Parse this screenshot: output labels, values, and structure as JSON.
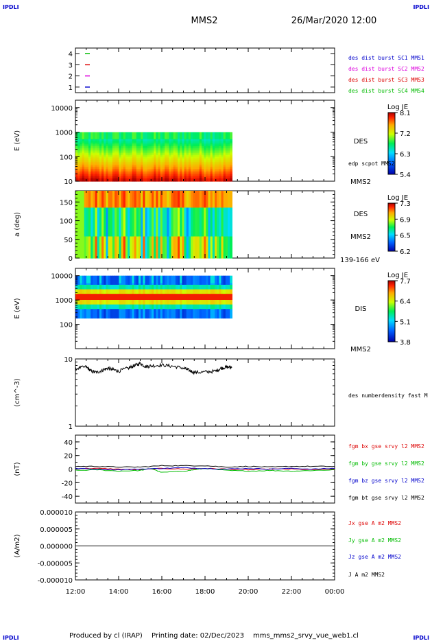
{
  "header": {
    "corner_logo": "IPDLI",
    "spacecraft": "MMS2",
    "datetime": "26/Mar/2020 12:00"
  },
  "footer": {
    "produced_by": "Produced by cl (IRAP)",
    "printing_date": "Printing date: 02/Dec/2023",
    "script_name": "mms_mms2_srvy_vue_web1.cl"
  },
  "colors": {
    "blue": "#0000cc",
    "red": "#dd0000",
    "green": "#00bb00",
    "magenta": "#dd00dd",
    "black": "#000000"
  },
  "chart_data": [
    {
      "type": "scatter",
      "panel": "burst-availability",
      "yticks": [
        "1",
        "2",
        "3",
        "4"
      ],
      "ylim": [
        0.5,
        4.5
      ],
      "legend": [
        {
          "name": "des dist burst SC1 MMS1",
          "color": "#0000cc",
          "level": 1
        },
        {
          "name": "des dist burst SC2 MMS2",
          "color": "#dd00dd",
          "level": 2
        },
        {
          "name": "des dist burst SC3 MMS3",
          "color": "#dd0000",
          "level": 3
        },
        {
          "name": "des dist burst SC4 MMS4",
          "color": "#00bb00",
          "level": 4
        }
      ]
    },
    {
      "type": "heatmap",
      "panel": "des-energy-spectrogram",
      "ylabel": "E (eV)",
      "yscale": "log",
      "ylim": [
        10,
        20000
      ],
      "yticks": [
        "10",
        "100",
        "1000",
        "10000"
      ],
      "colorbar": {
        "title": "Log JE",
        "ticks": [
          "8.1",
          "7.2",
          "6.3",
          "5.4"
        ],
        "range": [
          5.4,
          8.1
        ]
      },
      "labels": [
        "DES",
        "edp scpot MMS2",
        "MMS2"
      ],
      "data_end_hours": 7.25
    },
    {
      "type": "heatmap",
      "panel": "des-pitch-angle",
      "ylabel": "a (deg)",
      "ylim": [
        0,
        180
      ],
      "yticks": [
        "0",
        "50",
        "100",
        "150"
      ],
      "colorbar": {
        "title": "Log JE",
        "ticks": [
          "7.3",
          "6.9",
          "6.5",
          "6.2"
        ],
        "range": [
          6.2,
          7.3
        ]
      },
      "labels": [
        "DES",
        "MMS2",
        "139-166 eV"
      ],
      "data_end_hours": 7.25
    },
    {
      "type": "heatmap",
      "panel": "dis-energy-spectrogram",
      "ylabel": "E (eV)",
      "yscale": "log",
      "ylim": [
        10,
        20000
      ],
      "yticks": [
        "100",
        "1000",
        "10000"
      ],
      "colorbar": {
        "title": "Log JE",
        "ticks": [
          "7.7",
          "6.4",
          "5.1",
          "3.8"
        ],
        "range": [
          3.8,
          7.7
        ]
      },
      "labels": [
        "DIS",
        "MMS2"
      ],
      "data_end_hours": 7.25
    },
    {
      "type": "line",
      "panel": "electron-density",
      "ylabel": "(cm^-3)",
      "yscale": "log",
      "ylim": [
        1,
        10
      ],
      "yticks": [
        "1",
        "10"
      ],
      "series": [
        {
          "name": "des numberdensity fast M",
          "color": "#000000",
          "x": [
            0,
            0.5,
            0.75,
            1.0,
            1.25,
            1.5,
            1.75,
            2.0,
            2.5,
            2.75,
            3.0,
            3.25,
            3.5,
            4.0,
            4.5,
            5.0,
            5.25,
            5.5,
            6.0,
            6.5,
            6.75,
            7.0,
            7.25
          ],
          "y": [
            7.2,
            7.6,
            6.5,
            6.3,
            6.8,
            7.3,
            6.9,
            6.6,
            7.4,
            8.0,
            8.6,
            7.7,
            7.9,
            8.1,
            7.8,
            7.3,
            6.8,
            6.3,
            6.4,
            6.6,
            7.3,
            7.6,
            7.5
          ]
        }
      ]
    },
    {
      "type": "line",
      "panel": "magnetic-field",
      "ylabel": "(nT)",
      "ylim": [
        -50,
        50
      ],
      "yticks": [
        "-40",
        "-20",
        "0",
        "20",
        "40"
      ],
      "series": [
        {
          "name": "fgm bx gse srvy l2 MMS2",
          "color": "#dd0000",
          "x": [
            0,
            1,
            2,
            3,
            4,
            5,
            6,
            7,
            8,
            9,
            10,
            11,
            12
          ],
          "y": [
            1,
            1,
            0,
            -1,
            1,
            0,
            1,
            0,
            -1,
            0,
            0,
            -1,
            0
          ]
        },
        {
          "name": "fgm by gse srvy l2 MMS2",
          "color": "#00bb00",
          "x": [
            0,
            1,
            2,
            3,
            3.5,
            4,
            5,
            5.5,
            6,
            7,
            8,
            9,
            10,
            11,
            12
          ],
          "y": [
            -2,
            -1,
            -3,
            -2,
            1,
            -5,
            -3,
            -1,
            1,
            -2,
            -3,
            -2,
            -3,
            -2,
            -1
          ]
        },
        {
          "name": "fgm bz gse srvy l2 MMS2",
          "color": "#0000cc",
          "x": [
            0,
            1,
            2,
            3,
            4,
            5,
            6,
            7,
            8,
            9,
            10,
            11,
            12
          ],
          "y": [
            1,
            0,
            -1,
            0,
            1,
            2,
            1,
            0,
            1,
            0,
            1,
            0,
            1
          ]
        },
        {
          "name": "fgm bt gse srvy l2 MMS2",
          "color": "#000000",
          "x": [
            0,
            1,
            2,
            3,
            4,
            5,
            6,
            7,
            8,
            9,
            10,
            11,
            12
          ],
          "y": [
            4,
            4,
            3,
            3,
            5,
            5,
            5,
            3,
            4,
            3,
            4,
            4,
            4
          ]
        }
      ]
    },
    {
      "type": "line",
      "panel": "current-density",
      "ylabel": "(A/m2)",
      "ylim": [
        -1e-05,
        1e-05
      ],
      "yticks": [
        "-0.000010",
        "-0.000005",
        "0.000000",
        "0.000005",
        "0.000010"
      ],
      "series": [
        {
          "name": "Jx gse A m2 MMS2",
          "color": "#dd0000",
          "x": [
            0,
            12
          ],
          "y": [
            0,
            0
          ]
        },
        {
          "name": "Jy gse A m2 MMS2",
          "color": "#00bb00",
          "x": [
            0,
            12
          ],
          "y": [
            0,
            0
          ]
        },
        {
          "name": "Jz gse A m2 MMS2",
          "color": "#0000cc",
          "x": [
            0,
            12
          ],
          "y": [
            0,
            0
          ]
        },
        {
          "name": "J A m2 MMS2",
          "color": "#000000",
          "x": [
            0,
            12
          ],
          "y": [
            0,
            0
          ]
        }
      ]
    }
  ],
  "x_axis": {
    "start": "12:00",
    "range_hours": [
      0,
      12
    ],
    "ticks": [
      "12:00",
      "14:00",
      "16:00",
      "18:00",
      "20:00",
      "22:00",
      "00:00"
    ]
  }
}
